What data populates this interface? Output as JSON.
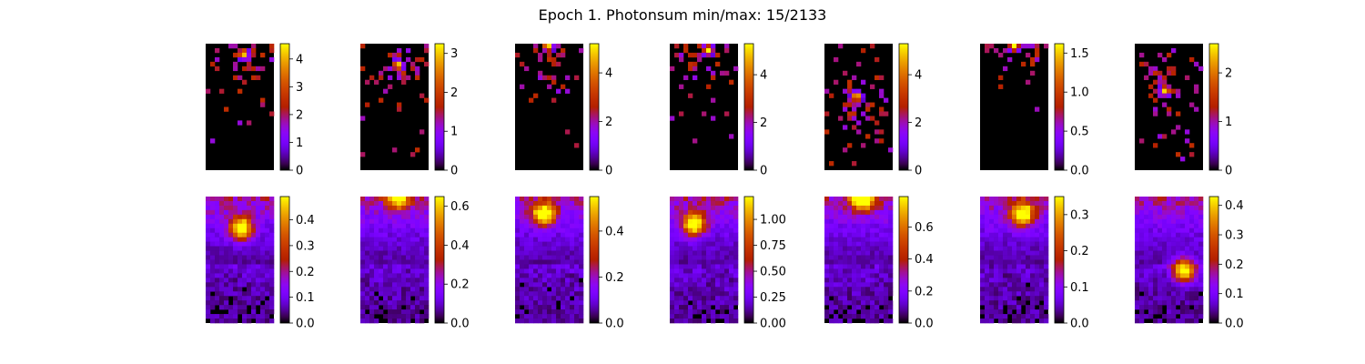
{
  "figure": {
    "title": "Epoch 1. Photonsum min/max: 15/2133"
  },
  "chart_data": [
    {
      "type": "heatmap",
      "row": 0,
      "col": 0,
      "colormap": "gnuplot",
      "vlim": [
        0,
        4.55
      ],
      "cbar_ticks": [
        "0",
        "1",
        "2",
        "3",
        "4"
      ],
      "cbar_values": [
        0,
        1,
        2,
        3,
        4
      ],
      "hotspot": {
        "x": 0.55,
        "y": 0.08
      },
      "background": "sparse"
    },
    {
      "type": "heatmap",
      "row": 0,
      "col": 1,
      "colormap": "gnuplot",
      "vlim": [
        0,
        3.25
      ],
      "cbar_ticks": [
        "0",
        "1",
        "2",
        "3"
      ],
      "cbar_values": [
        0,
        1,
        2,
        3
      ],
      "hotspot": {
        "x": 0.55,
        "y": 0.17
      },
      "background": "sparse"
    },
    {
      "type": "heatmap",
      "row": 0,
      "col": 2,
      "colormap": "gnuplot",
      "vlim": [
        0,
        5.2
      ],
      "cbar_ticks": [
        "0",
        "2",
        "4"
      ],
      "cbar_values": [
        0,
        2,
        4
      ],
      "hotspot": {
        "x": 0.48,
        "y": 0.02
      },
      "background": "sparse"
    },
    {
      "type": "heatmap",
      "row": 0,
      "col": 3,
      "colormap": "gnuplot",
      "vlim": [
        0,
        5.3
      ],
      "cbar_ticks": [
        "0",
        "2",
        "4"
      ],
      "cbar_values": [
        0,
        2,
        4
      ],
      "hotspot": {
        "x": 0.56,
        "y": 0.05
      },
      "background": "sparse"
    },
    {
      "type": "heatmap",
      "row": 0,
      "col": 4,
      "colormap": "gnuplot",
      "vlim": [
        0,
        5.3
      ],
      "cbar_ticks": [
        "0",
        "2",
        "4"
      ],
      "cbar_values": [
        0,
        2,
        4
      ],
      "hotspot": {
        "x": 0.47,
        "y": 0.42
      },
      "background": "sparse"
    },
    {
      "type": "heatmap",
      "row": 0,
      "col": 5,
      "colormap": "gnuplot",
      "vlim": [
        0,
        1.62
      ],
      "cbar_ticks": [
        "0.0",
        "0.5",
        "1.0",
        "1.5"
      ],
      "cbar_values": [
        0,
        0.5,
        1.0,
        1.5
      ],
      "hotspot": {
        "x": 0.5,
        "y": 0.02
      },
      "background": "sparse-top"
    },
    {
      "type": "heatmap",
      "row": 0,
      "col": 6,
      "colormap": "gnuplot",
      "vlim": [
        0,
        2.6
      ],
      "cbar_ticks": [
        "0",
        "1",
        "2"
      ],
      "cbar_values": [
        0,
        1,
        2
      ],
      "hotspot": {
        "x": 0.45,
        "y": 0.37
      },
      "background": "sparse"
    },
    {
      "type": "heatmap",
      "row": 1,
      "col": 0,
      "colormap": "gnuplot",
      "vlim": [
        0,
        0.49
      ],
      "cbar_ticks": [
        "0.0",
        "0.1",
        "0.2",
        "0.3",
        "0.4"
      ],
      "cbar_values": [
        0,
        0.1,
        0.2,
        0.3,
        0.4
      ],
      "hotspot": {
        "x": 0.52,
        "y": 0.25
      },
      "background": "smooth"
    },
    {
      "type": "heatmap",
      "row": 1,
      "col": 1,
      "colormap": "gnuplot",
      "vlim": [
        0,
        0.65
      ],
      "cbar_ticks": [
        "0.0",
        "0.2",
        "0.4",
        "0.6"
      ],
      "cbar_values": [
        0,
        0.2,
        0.4,
        0.6
      ],
      "hotspot": {
        "x": 0.55,
        "y": 0.0
      },
      "background": "smooth"
    },
    {
      "type": "heatmap",
      "row": 1,
      "col": 2,
      "colormap": "gnuplot",
      "vlim": [
        0,
        0.55
      ],
      "cbar_ticks": [
        "0.0",
        "0.2",
        "0.4"
      ],
      "cbar_values": [
        0,
        0.2,
        0.4
      ],
      "hotspot": {
        "x": 0.42,
        "y": 0.14
      },
      "background": "smooth"
    },
    {
      "type": "heatmap",
      "row": 1,
      "col": 3,
      "colormap": "gnuplot",
      "vlim": [
        0,
        1.22
      ],
      "cbar_ticks": [
        "0.00",
        "0.25",
        "0.50",
        "0.75",
        "1.00"
      ],
      "cbar_values": [
        0,
        0.25,
        0.5,
        0.75,
        1.0
      ],
      "hotspot": {
        "x": 0.35,
        "y": 0.22
      },
      "background": "smooth"
    },
    {
      "type": "heatmap",
      "row": 1,
      "col": 4,
      "colormap": "gnuplot",
      "vlim": [
        0,
        0.79
      ],
      "cbar_ticks": [
        "0.0",
        "0.2",
        "0.4",
        "0.6"
      ],
      "cbar_values": [
        0,
        0.2,
        0.4,
        0.6
      ],
      "hotspot": {
        "x": 0.55,
        "y": 0.02
      },
      "background": "smooth"
    },
    {
      "type": "heatmap",
      "row": 1,
      "col": 5,
      "colormap": "gnuplot",
      "vlim": [
        0,
        0.35
      ],
      "cbar_ticks": [
        "0.0",
        "0.1",
        "0.2",
        "0.3"
      ],
      "cbar_values": [
        0,
        0.1,
        0.2,
        0.3
      ],
      "hotspot": {
        "x": 0.62,
        "y": 0.14
      },
      "background": "smooth"
    },
    {
      "type": "heatmap",
      "row": 1,
      "col": 6,
      "colormap": "gnuplot",
      "vlim": [
        0,
        0.43
      ],
      "cbar_ticks": [
        "0.0",
        "0.1",
        "0.2",
        "0.3",
        "0.4"
      ],
      "cbar_values": [
        0,
        0.1,
        0.2,
        0.3,
        0.4
      ],
      "hotspot": {
        "x": 0.72,
        "y": 0.58
      },
      "background": "smooth"
    }
  ]
}
